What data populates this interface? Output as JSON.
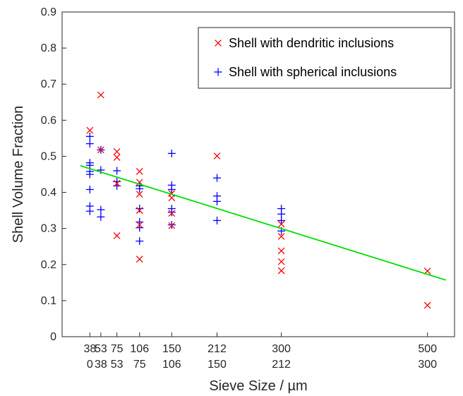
{
  "chart_data": {
    "type": "scatter",
    "title": "",
    "xlabel": "Sieve Size / µm",
    "ylabel": "Shell Volume Fraction",
    "ylim": [
      0,
      0.9
    ],
    "yticks": [
      "0",
      "0.1",
      "0.2",
      "0.3",
      "0.4",
      "0.5",
      "0.6",
      "0.7",
      "0.8",
      "0.9"
    ],
    "xlim": [
      0,
      537
    ],
    "xticks": [
      {
        "x": 38,
        "top": "38",
        "bottom": "0"
      },
      {
        "x": 53,
        "top": "53",
        "bottom": "38"
      },
      {
        "x": 75,
        "top": "75",
        "bottom": "53"
      },
      {
        "x": 106,
        "top": "106",
        "bottom": "75"
      },
      {
        "x": 150,
        "top": "150",
        "bottom": "106"
      },
      {
        "x": 212,
        "top": "212",
        "bottom": "150"
      },
      {
        "x": 300,
        "top": "300",
        "bottom": "212"
      },
      {
        "x": 500,
        "top": "500",
        "bottom": "300"
      }
    ],
    "grid": false,
    "legend_position": "top-right",
    "series": [
      {
        "name": "Shell with dendritic inclusions",
        "marker": "x",
        "color": "#ff0000",
        "points": [
          [
            38,
            0.572
          ],
          [
            53,
            0.67
          ],
          [
            53,
            0.518
          ],
          [
            75,
            0.513
          ],
          [
            75,
            0.497
          ],
          [
            75,
            0.425
          ],
          [
            75,
            0.28
          ],
          [
            106,
            0.458
          ],
          [
            106,
            0.428
          ],
          [
            106,
            0.395
          ],
          [
            106,
            0.35
          ],
          [
            106,
            0.31
          ],
          [
            106,
            0.215
          ],
          [
            150,
            0.397
          ],
          [
            150,
            0.385
          ],
          [
            150,
            0.342
          ],
          [
            150,
            0.308
          ],
          [
            212,
            0.501
          ],
          [
            300,
            0.312
          ],
          [
            300,
            0.278
          ],
          [
            300,
            0.238
          ],
          [
            300,
            0.208
          ],
          [
            300,
            0.183
          ],
          [
            500,
            0.182
          ],
          [
            500,
            0.087
          ]
        ]
      },
      {
        "name": "Shell with spherical inclusions",
        "marker": "+",
        "color": "#0000ff",
        "points": [
          [
            38,
            0.555
          ],
          [
            38,
            0.535
          ],
          [
            38,
            0.482
          ],
          [
            38,
            0.475
          ],
          [
            38,
            0.458
          ],
          [
            38,
            0.45
          ],
          [
            38,
            0.408
          ],
          [
            38,
            0.362
          ],
          [
            38,
            0.348
          ],
          [
            53,
            0.518
          ],
          [
            53,
            0.462
          ],
          [
            53,
            0.352
          ],
          [
            53,
            0.332
          ],
          [
            75,
            0.46
          ],
          [
            75,
            0.43
          ],
          [
            75,
            0.418
          ],
          [
            106,
            0.418
          ],
          [
            106,
            0.41
          ],
          [
            106,
            0.355
          ],
          [
            106,
            0.318
          ],
          [
            106,
            0.302
          ],
          [
            106,
            0.265
          ],
          [
            150,
            0.508
          ],
          [
            150,
            0.42
          ],
          [
            150,
            0.408
          ],
          [
            150,
            0.355
          ],
          [
            150,
            0.345
          ],
          [
            150,
            0.31
          ],
          [
            212,
            0.44
          ],
          [
            212,
            0.39
          ],
          [
            212,
            0.375
          ],
          [
            212,
            0.322
          ],
          [
            300,
            0.355
          ],
          [
            300,
            0.34
          ],
          [
            300,
            0.322
          ],
          [
            300,
            0.293
          ]
        ]
      }
    ],
    "fit_line": {
      "color": "#00dd00",
      "from": [
        25,
        0.474
      ],
      "to": [
        525,
        0.157
      ]
    }
  }
}
